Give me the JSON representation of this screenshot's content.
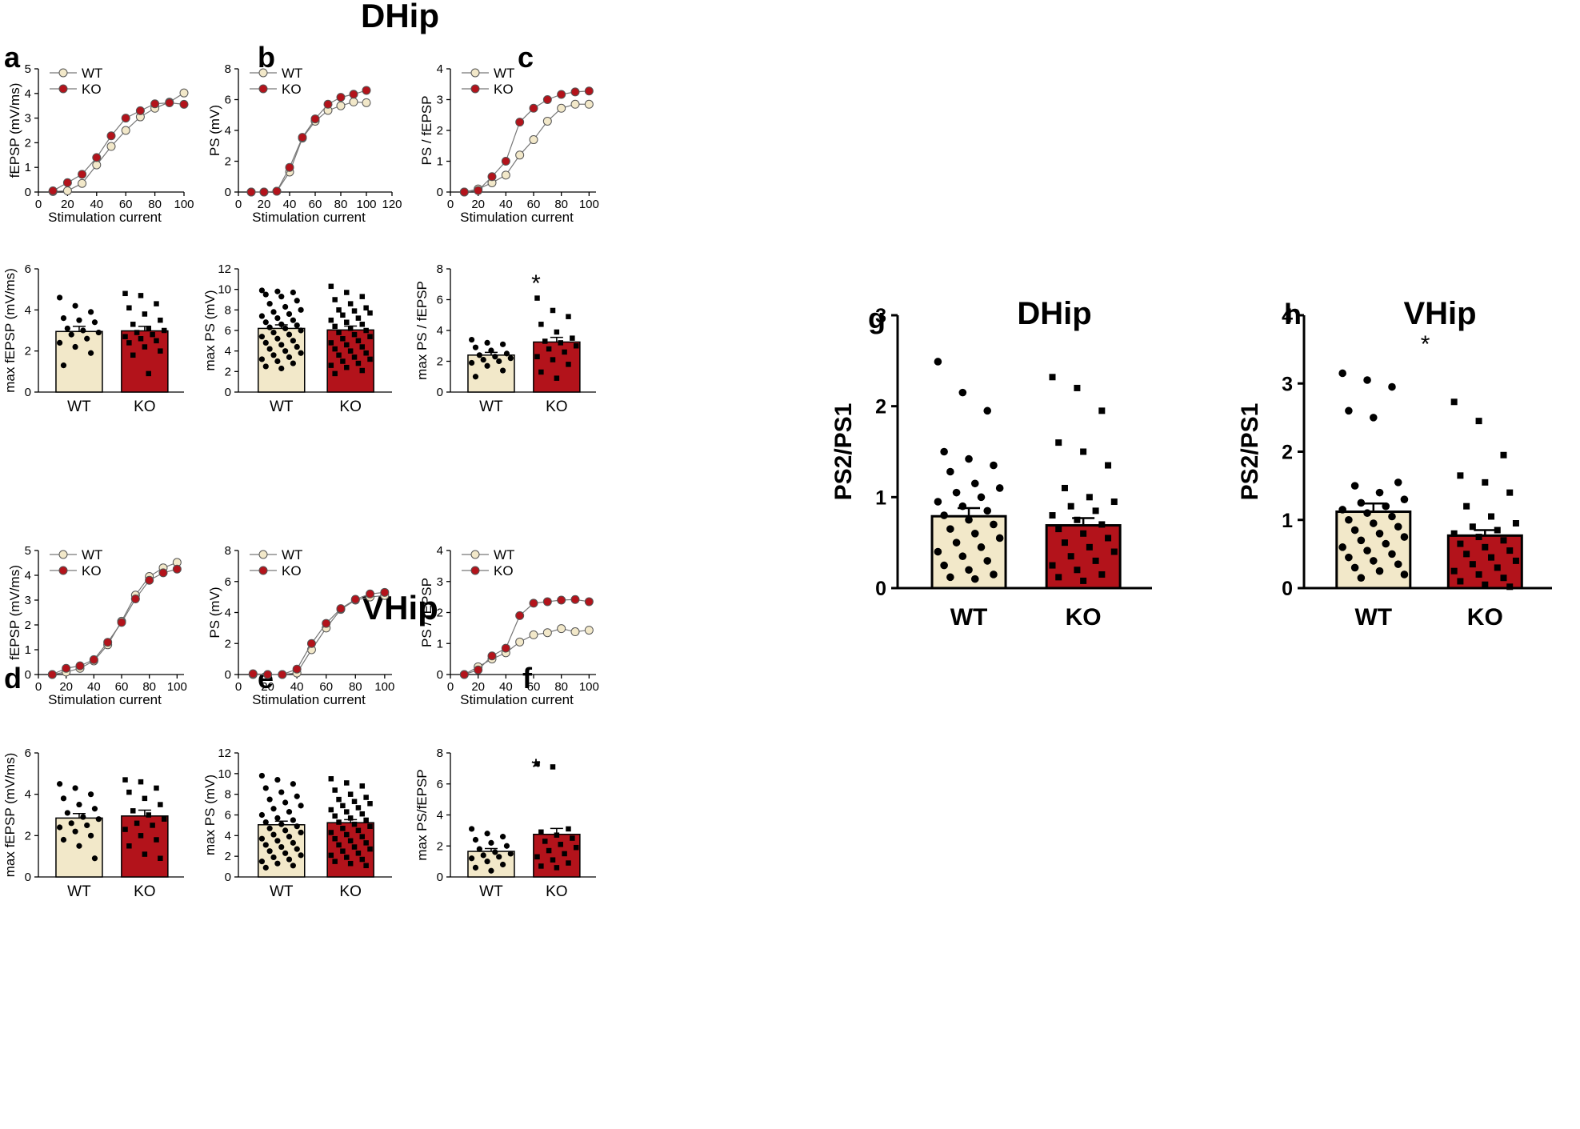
{
  "figure": {
    "section_titles": {
      "dhip": "DHip",
      "vhip": "VHip"
    },
    "panel_letters": [
      "a",
      "b",
      "c",
      "d",
      "e",
      "f",
      "g",
      "h"
    ]
  },
  "colors": {
    "wt": "#f2e8c9",
    "ko": "#b3131b",
    "line": "#777777",
    "axis": "#000000"
  },
  "chart_data": [
    {
      "id": "a",
      "type": "line",
      "xlabel": "Stimulation current",
      "ylabel": "fEPSP (mV/ms)",
      "xlim": [
        0,
        100
      ],
      "ylim": [
        0,
        5
      ],
      "xticks": [
        "0",
        "20",
        "40",
        "60",
        "80",
        "100"
      ],
      "yticks": [
        "0",
        "1",
        "2",
        "3",
        "4",
        "5"
      ],
      "legend": [
        "WT",
        "KO"
      ],
      "series": [
        {
          "name": "WT",
          "x": [
            10,
            20,
            30,
            40,
            50,
            60,
            70,
            80,
            90,
            100
          ],
          "y": [
            0.02,
            0.05,
            0.35,
            1.1,
            1.85,
            2.5,
            3.05,
            3.4,
            3.65,
            4.02
          ]
        },
        {
          "name": "KO",
          "x": [
            10,
            20,
            30,
            40,
            50,
            60,
            70,
            80,
            90,
            100
          ],
          "y": [
            0.05,
            0.38,
            0.72,
            1.4,
            2.28,
            3.0,
            3.3,
            3.58,
            3.62,
            3.56
          ]
        }
      ]
    },
    {
      "id": "b",
      "type": "line",
      "xlabel": "Stimulation current",
      "ylabel": "PS (mV)",
      "xlim": [
        0,
        120
      ],
      "ylim": [
        0,
        8
      ],
      "xticks": [
        "0",
        "20",
        "40",
        "60",
        "80",
        "100",
        "120"
      ],
      "yticks": [
        "0",
        "2",
        "4",
        "6",
        "8"
      ],
      "legend": [
        "WT",
        "KO"
      ],
      "series": [
        {
          "name": "WT",
          "x": [
            10,
            20,
            30,
            40,
            50,
            60,
            70,
            80,
            90,
            100
          ],
          "y": [
            0,
            0,
            0.05,
            1.3,
            3.5,
            4.6,
            5.3,
            5.6,
            5.85,
            5.8
          ]
        },
        {
          "name": "KO",
          "x": [
            10,
            20,
            30,
            40,
            50,
            60,
            70,
            80,
            90,
            100
          ],
          "y": [
            0,
            0,
            0.05,
            1.6,
            3.55,
            4.75,
            5.7,
            6.15,
            6.35,
            6.6
          ]
        }
      ]
    },
    {
      "id": "c",
      "type": "line",
      "xlabel": "Stimulation current",
      "ylabel": "PS / fEPSP",
      "xlim": [
        0,
        105
      ],
      "ylim": [
        0,
        4
      ],
      "xticks": [
        "0",
        "20",
        "40",
        "60",
        "80",
        "100"
      ],
      "yticks": [
        "0",
        "1",
        "2",
        "3",
        "4"
      ],
      "legend": [
        "WT",
        "KO"
      ],
      "series": [
        {
          "name": "WT",
          "x": [
            10,
            20,
            30,
            40,
            50,
            60,
            70,
            80,
            90,
            100
          ],
          "y": [
            0,
            0.1,
            0.3,
            0.55,
            1.2,
            1.7,
            2.3,
            2.72,
            2.85,
            2.85
          ]
        },
        {
          "name": "KO",
          "x": [
            10,
            20,
            30,
            40,
            50,
            60,
            70,
            80,
            90,
            100
          ],
          "y": [
            0,
            0.05,
            0.5,
            1.0,
            2.27,
            2.72,
            3.0,
            3.17,
            3.25,
            3.28
          ]
        }
      ]
    },
    {
      "id": "a-bar",
      "type": "bar",
      "ylabel": "max fEPSP (mV/ms)",
      "ylim": [
        0,
        6
      ],
      "yticks": [
        "0",
        "2",
        "4",
        "6"
      ],
      "categories": [
        "WT",
        "KO"
      ],
      "values": [
        2.95,
        2.98
      ],
      "errors": [
        0.25,
        0.22
      ],
      "significance": "",
      "points": {
        "WT": [
          4.6,
          4.2,
          3.9,
          3.6,
          3.5,
          3.4,
          3.1,
          3.0,
          2.9,
          2.8,
          2.6,
          2.4,
          2.2,
          1.9,
          1.3
        ],
        "KO": [
          4.8,
          4.7,
          4.3,
          4.1,
          3.8,
          3.5,
          3.3,
          3.1,
          3.0,
          2.9,
          2.8,
          2.7,
          2.6,
          2.5,
          2.4,
          2.2,
          2.0,
          1.8,
          0.9
        ]
      }
    },
    {
      "id": "b-bar",
      "type": "bar",
      "ylabel": "max PS (mV)",
      "ylim": [
        0,
        12
      ],
      "yticks": [
        "0",
        "2",
        "4",
        "6",
        "8",
        "10",
        "12"
      ],
      "categories": [
        "WT",
        "KO"
      ],
      "values": [
        6.2,
        6.05
      ],
      "errors": [
        0.35,
        0.38
      ],
      "significance": "",
      "points": {
        "WT": [
          9.9,
          9.8,
          9.7,
          9.5,
          9.3,
          8.9,
          8.6,
          8.3,
          8.0,
          7.8,
          7.6,
          7.4,
          7.2,
          7.0,
          6.8,
          6.6,
          6.5,
          6.3,
          6.2,
          6.0,
          5.8,
          5.6,
          5.4,
          5.2,
          5.0,
          4.8,
          4.6,
          4.4,
          4.2,
          4.0,
          3.8,
          3.6,
          3.4,
          3.2,
          3.0,
          2.8,
          2.5,
          2.3
        ],
        "KO": [
          10.3,
          9.7,
          9.3,
          9.0,
          8.6,
          8.2,
          8.0,
          7.9,
          7.7,
          7.5,
          7.2,
          7.0,
          6.8,
          6.6,
          6.4,
          6.2,
          6.0,
          5.8,
          5.6,
          5.4,
          5.2,
          5.0,
          4.8,
          4.6,
          4.4,
          4.2,
          4.0,
          3.8,
          3.6,
          3.4,
          3.2,
          3.0,
          2.8,
          2.6,
          2.4,
          2.1,
          1.8
        ]
      }
    },
    {
      "id": "c-bar",
      "type": "bar",
      "ylabel": "max PS / fEPSP",
      "ylim": [
        0,
        8
      ],
      "yticks": [
        "0",
        "2",
        "4",
        "6",
        "8"
      ],
      "categories": [
        "WT",
        "KO"
      ],
      "values": [
        2.4,
        3.25
      ],
      "errors": [
        0.18,
        0.3
      ],
      "significance": "*",
      "points": {
        "WT": [
          3.4,
          3.2,
          3.1,
          2.9,
          2.7,
          2.5,
          2.4,
          2.3,
          2.2,
          2.1,
          2.0,
          1.9,
          1.7,
          1.4,
          1.0
        ],
        "KO": [
          6.1,
          5.3,
          4.9,
          4.4,
          3.9,
          3.5,
          3.3,
          3.2,
          3.0,
          2.8,
          2.6,
          2.3,
          2.1,
          1.8,
          1.3,
          0.9
        ]
      }
    },
    {
      "id": "d",
      "type": "line",
      "xlabel": "Stimulation current",
      "ylabel": "fEPSP (mV/ms)",
      "xlim": [
        0,
        105
      ],
      "ylim": [
        0,
        5
      ],
      "xticks": [
        "0",
        "20",
        "40",
        "60",
        "80",
        "100"
      ],
      "yticks": [
        "0",
        "1",
        "2",
        "3",
        "4",
        "5"
      ],
      "legend": [
        "WT",
        "KO"
      ],
      "series": [
        {
          "name": "WT",
          "x": [
            10,
            20,
            30,
            40,
            50,
            60,
            70,
            80,
            90,
            100
          ],
          "y": [
            0,
            0.1,
            0.25,
            0.55,
            1.2,
            2.15,
            3.2,
            3.95,
            4.3,
            4.52
          ]
        },
        {
          "name": "KO",
          "x": [
            10,
            20,
            30,
            40,
            50,
            60,
            70,
            80,
            90,
            100
          ],
          "y": [
            0,
            0.25,
            0.35,
            0.6,
            1.3,
            2.1,
            3.05,
            3.8,
            4.1,
            4.25
          ]
        }
      ]
    },
    {
      "id": "e",
      "type": "line",
      "xlabel": "Stimulation current",
      "ylabel": "PS (mV)",
      "xlim": [
        0,
        105
      ],
      "ylim": [
        0,
        8
      ],
      "xticks": [
        "0",
        "20",
        "40",
        "60",
        "80",
        "100"
      ],
      "yticks": [
        "0",
        "2",
        "4",
        "6",
        "8"
      ],
      "legend": [
        "WT",
        "KO"
      ],
      "series": [
        {
          "name": "WT",
          "x": [
            10,
            20,
            30,
            40,
            50,
            60,
            70,
            80,
            90,
            100
          ],
          "y": [
            0,
            0,
            0,
            0.1,
            1.6,
            3.0,
            4.2,
            4.8,
            5.0,
            5.1
          ]
        },
        {
          "name": "KO",
          "x": [
            10,
            20,
            30,
            40,
            50,
            60,
            70,
            80,
            90,
            100
          ],
          "y": [
            0.05,
            0,
            0,
            0.35,
            2.0,
            3.3,
            4.25,
            4.85,
            5.2,
            5.3
          ]
        }
      ]
    },
    {
      "id": "f",
      "type": "line",
      "xlabel": "Stimulation current",
      "ylabel": "PS / fEPSP",
      "xlim": [
        0,
        105
      ],
      "ylim": [
        0,
        4
      ],
      "xticks": [
        "0",
        "20",
        "40",
        "60",
        "80",
        "100"
      ],
      "yticks": [
        "0",
        "1",
        "2",
        "3",
        "4"
      ],
      "legend": [
        "WT",
        "KO"
      ],
      "series": [
        {
          "name": "WT",
          "x": [
            10,
            20,
            30,
            40,
            50,
            60,
            70,
            80,
            90,
            100
          ],
          "y": [
            0,
            0.25,
            0.5,
            0.7,
            1.05,
            1.28,
            1.35,
            1.48,
            1.38,
            1.43
          ]
        },
        {
          "name": "KO",
          "x": [
            10,
            20,
            30,
            40,
            50,
            60,
            70,
            80,
            90,
            100
          ],
          "y": [
            0,
            0.15,
            0.6,
            0.85,
            1.9,
            2.3,
            2.35,
            2.4,
            2.42,
            2.35
          ]
        }
      ]
    },
    {
      "id": "d-bar",
      "type": "bar",
      "ylabel": "max fEPSP (mV/ms)",
      "ylim": [
        0,
        6
      ],
      "yticks": [
        "0",
        "2",
        "4",
        "6"
      ],
      "categories": [
        "WT",
        "KO"
      ],
      "values": [
        2.85,
        2.95
      ],
      "errors": [
        0.22,
        0.28
      ],
      "significance": "",
      "points": {
        "WT": [
          4.5,
          4.3,
          4.0,
          3.8,
          3.5,
          3.3,
          3.1,
          2.9,
          2.8,
          2.6,
          2.5,
          2.4,
          2.2,
          2.0,
          1.8,
          1.5,
          0.9
        ],
        "KO": [
          4.7,
          4.6,
          4.3,
          4.1,
          3.8,
          3.5,
          3.2,
          3.0,
          2.8,
          2.6,
          2.5,
          2.3,
          2.0,
          1.8,
          1.5,
          1.1,
          0.9
        ]
      }
    },
    {
      "id": "e-bar",
      "type": "bar",
      "ylabel": "max PS (mV)",
      "ylim": [
        0,
        12
      ],
      "yticks": [
        "0",
        "2",
        "4",
        "6",
        "8",
        "10",
        "12"
      ],
      "categories": [
        "WT",
        "KO"
      ],
      "values": [
        5.05,
        5.25
      ],
      "errors": [
        0.35,
        0.3
      ],
      "significance": "",
      "points": {
        "WT": [
          9.8,
          9.4,
          9.0,
          8.6,
          8.2,
          7.8,
          7.5,
          7.2,
          6.9,
          6.6,
          6.3,
          6.0,
          5.7,
          5.5,
          5.3,
          5.1,
          4.9,
          4.7,
          4.5,
          4.3,
          4.1,
          3.9,
          3.7,
          3.5,
          3.3,
          3.1,
          2.9,
          2.7,
          2.5,
          2.3,
          2.1,
          1.9,
          1.7,
          1.5,
          1.3,
          1.1,
          0.9
        ],
        "KO": [
          9.5,
          9.1,
          8.8,
          8.4,
          8.0,
          7.7,
          7.5,
          7.3,
          7.1,
          6.9,
          6.7,
          6.5,
          6.3,
          6.1,
          5.9,
          5.7,
          5.5,
          5.3,
          5.1,
          4.9,
          4.7,
          4.5,
          4.3,
          4.1,
          3.9,
          3.7,
          3.5,
          3.3,
          3.1,
          2.9,
          2.7,
          2.5,
          2.3,
          2.1,
          1.9,
          1.7,
          1.5,
          1.3,
          1.1
        ]
      }
    },
    {
      "id": "f-bar",
      "type": "bar",
      "ylabel": "max PS/fEPSP",
      "ylim": [
        0,
        8
      ],
      "yticks": [
        "0",
        "2",
        "4",
        "6",
        "8"
      ],
      "categories": [
        "WT",
        "KO"
      ],
      "values": [
        1.65,
        2.75
      ],
      "errors": [
        0.18,
        0.38
      ],
      "significance": "*",
      "points": {
        "WT": [
          3.1,
          2.8,
          2.6,
          2.4,
          2.2,
          2.0,
          1.8,
          1.6,
          1.5,
          1.4,
          1.3,
          1.2,
          1.0,
          0.8,
          0.6,
          0.4
        ],
        "KO": [
          7.3,
          7.1,
          3.1,
          2.9,
          2.7,
          2.5,
          2.3,
          2.1,
          1.9,
          1.7,
          1.5,
          1.3,
          1.1,
          0.9,
          0.7,
          0.6
        ]
      }
    },
    {
      "id": "g",
      "type": "bar",
      "title": "DHip",
      "ylabel": "PS2/PS1",
      "ylim": [
        0,
        3
      ],
      "yticks": [
        "0",
        "1",
        "2",
        "3"
      ],
      "categories": [
        "WT",
        "KO"
      ],
      "values": [
        0.79,
        0.69
      ],
      "errors": [
        0.09,
        0.08
      ],
      "significance": "",
      "points": {
        "WT": [
          2.49,
          2.15,
          1.95,
          1.5,
          1.42,
          1.35,
          1.28,
          1.15,
          1.1,
          1.05,
          1.0,
          0.95,
          0.9,
          0.85,
          0.8,
          0.75,
          0.7,
          0.65,
          0.6,
          0.55,
          0.5,
          0.45,
          0.4,
          0.35,
          0.3,
          0.25,
          0.2,
          0.15,
          0.12,
          0.1
        ],
        "KO": [
          2.32,
          2.2,
          1.95,
          1.6,
          1.5,
          1.35,
          1.1,
          1.0,
          0.95,
          0.9,
          0.85,
          0.8,
          0.75,
          0.7,
          0.65,
          0.6,
          0.55,
          0.5,
          0.45,
          0.4,
          0.35,
          0.3,
          0.25,
          0.2,
          0.15,
          0.12,
          0.08
        ]
      }
    },
    {
      "id": "h",
      "type": "bar",
      "title": "VHip",
      "ylabel": "PS2/PS1",
      "ylim": [
        0,
        4
      ],
      "yticks": [
        "0",
        "1",
        "2",
        "3",
        "4"
      ],
      "categories": [
        "WT",
        "KO"
      ],
      "values": [
        1.12,
        0.77
      ],
      "errors": [
        0.12,
        0.08
      ],
      "significance": "*",
      "points": {
        "WT": [
          3.15,
          3.05,
          2.95,
          2.6,
          2.5,
          1.55,
          1.5,
          1.4,
          1.3,
          1.25,
          1.2,
          1.15,
          1.1,
          1.05,
          1.0,
          0.95,
          0.9,
          0.85,
          0.8,
          0.75,
          0.7,
          0.65,
          0.6,
          0.55,
          0.5,
          0.45,
          0.4,
          0.35,
          0.3,
          0.25,
          0.2,
          0.15
        ],
        "KO": [
          2.73,
          2.45,
          1.95,
          1.65,
          1.55,
          1.4,
          1.2,
          1.05,
          0.95,
          0.9,
          0.85,
          0.8,
          0.75,
          0.7,
          0.65,
          0.6,
          0.55,
          0.5,
          0.45,
          0.4,
          0.35,
          0.3,
          0.25,
          0.2,
          0.15,
          0.1,
          0.05,
          0.02
        ]
      }
    }
  ]
}
